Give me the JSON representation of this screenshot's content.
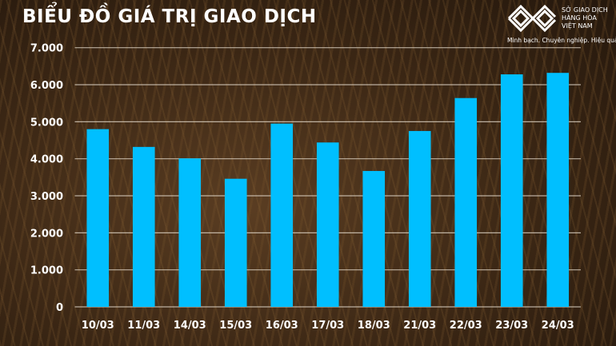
{
  "header": {
    "title": "BIỂU ĐỒ GIÁ TRỊ GIAO DỊCH"
  },
  "logo": {
    "name_lines": [
      "SỞ GIAO DỊCH",
      "HÀNG HÓA",
      "VIỆT NAM"
    ],
    "tm": "™",
    "slogan": "Minh bạch. Chuyên nghiệp. Hiệu quả"
  },
  "chart_data": {
    "type": "bar",
    "title": "BIỂU ĐỒ GIÁ TRỊ GIAO DỊCH",
    "xlabel": "",
    "ylabel": "",
    "categories": [
      "10/03",
      "11/03",
      "14/03",
      "15/03",
      "16/03",
      "17/03",
      "18/03",
      "21/03",
      "22/03",
      "23/03",
      "24/03"
    ],
    "values": [
      4800,
      4320,
      4010,
      3460,
      4950,
      4440,
      3670,
      4750,
      5640,
      6280,
      6320
    ],
    "ylim": [
      0,
      7000
    ],
    "yticks": [
      0,
      1000,
      2000,
      3000,
      4000,
      5000,
      6000,
      7000
    ],
    "ytick_labels": [
      "0",
      "1.000",
      "2.000",
      "3.000",
      "4.000",
      "5.000",
      "6.000",
      "7.000"
    ],
    "grid": true,
    "bar_color": "#00BFFF",
    "legend": "none"
  }
}
